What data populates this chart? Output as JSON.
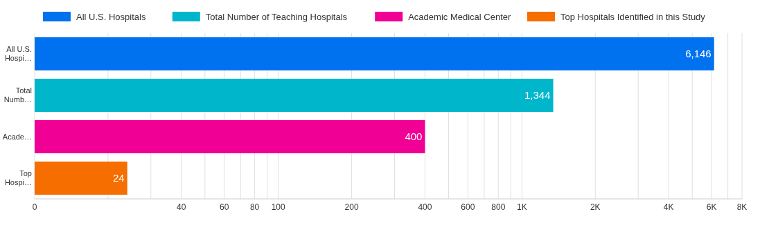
{
  "chart_data": {
    "type": "bar",
    "orientation": "horizontal",
    "log": "x",
    "categories": [
      "All U.S. Hospi…",
      "Total Numb…",
      "Acade…",
      "Top Hospi…"
    ],
    "series": [
      {
        "name": "All U.S. Hospitals",
        "color": "#0072f0",
        "values": [
          6146,
          null,
          null,
          null
        ],
        "value_labels": [
          "6,146",
          null,
          null,
          null
        ]
      },
      {
        "name": "Total Number of Teaching Hospitals",
        "color": "#00b6cb",
        "values": [
          null,
          1344,
          null,
          null
        ],
        "value_labels": [
          null,
          "1,344",
          null,
          null
        ]
      },
      {
        "name": "Academic Medical Center",
        "color": "#f10096",
        "values": [
          null,
          null,
          400,
          null
        ],
        "value_labels": [
          null,
          null,
          "400",
          null
        ]
      },
      {
        "name": "Top Hospitals Identified in this Study",
        "color": "#f66d00",
        "values": [
          null,
          null,
          null,
          24
        ],
        "value_labels": [
          null,
          null,
          null,
          "24"
        ]
      }
    ],
    "xlim": [
      0,
      8000
    ],
    "xticks": [
      0,
      {
        "value": 20,
        "label": null
      },
      {
        "value": 30,
        "label": null
      },
      40,
      {
        "value": 50,
        "label": null
      },
      60,
      {
        "value": 70,
        "label": null
      },
      80,
      {
        "value": 90,
        "label": null
      },
      100,
      200,
      {
        "value": 300,
        "label": null
      },
      400,
      {
        "value": 500,
        "label": null
      },
      600,
      {
        "value": 700,
        "label": null
      },
      800,
      {
        "value": 900,
        "label": null
      },
      {
        "value": 1000,
        "label": "1K"
      },
      {
        "value": 2000,
        "label": "2K"
      },
      {
        "value": 3000,
        "label": null
      },
      {
        "value": 4000,
        "label": "4K"
      },
      {
        "value": 5000,
        "label": null
      },
      {
        "value": 6000,
        "label": "6K"
      },
      {
        "value": 7000,
        "label": null
      },
      {
        "value": 8000,
        "label": "8K"
      }
    ],
    "grid": "x",
    "legend": "top"
  }
}
